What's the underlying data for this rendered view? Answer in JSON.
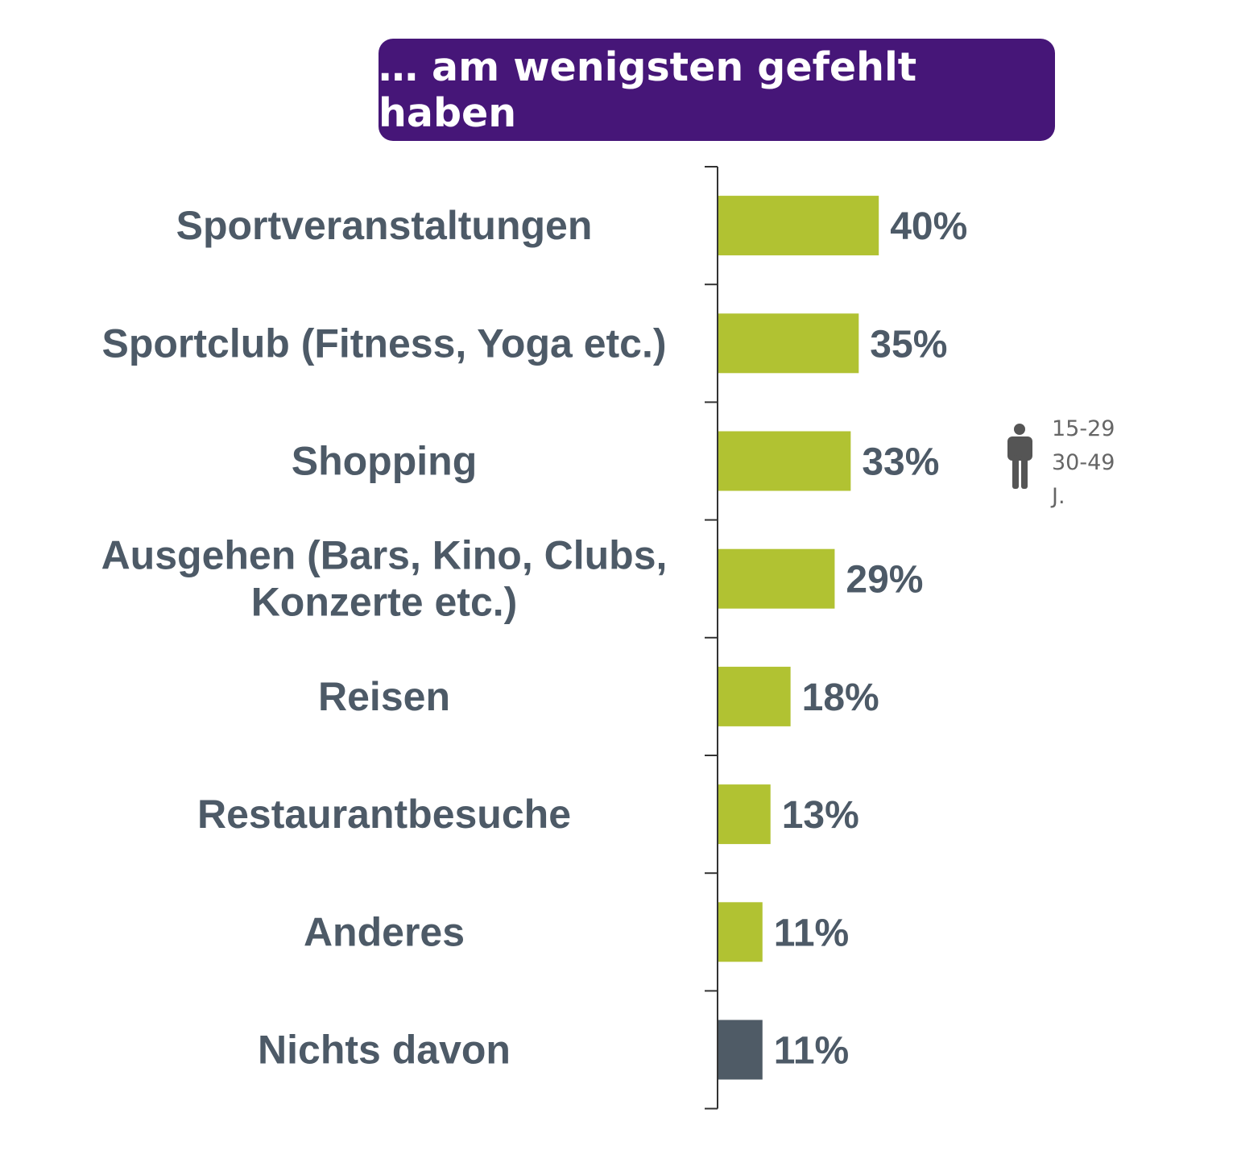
{
  "header": {
    "title": "… am wenigsten gefehlt haben"
  },
  "chart_data": {
    "type": "bar",
    "orientation": "horizontal",
    "title": "… am wenigsten gefehlt haben",
    "categories": [
      [
        "Sportveranstaltungen"
      ],
      [
        "Sportclub (Fitness, Yoga etc.)"
      ],
      [
        "Shopping"
      ],
      [
        "Ausgehen (Bars, Kino, Clubs,",
        "Konzerte etc.)"
      ],
      [
        "Reisen"
      ],
      [
        "Restaurantbesuche"
      ],
      [
        "Anderes"
      ],
      [
        "Nichts davon"
      ]
    ],
    "values": [
      40,
      35,
      33,
      29,
      18,
      13,
      11,
      11
    ],
    "value_labels": [
      "40%",
      "35%",
      "33%",
      "29%",
      "18%",
      "13%",
      "11%",
      "11%"
    ],
    "unit": "%",
    "xlim": [
      0,
      100
    ],
    "grid": false,
    "colors": {
      "default": "#b1c232",
      "highlight": "#4f5b66"
    },
    "highlight_index": 7,
    "legend": {
      "icon": "person-icon",
      "lines": [
        "15-29",
        "30-49",
        "J."
      ],
      "placement": "right"
    }
  }
}
